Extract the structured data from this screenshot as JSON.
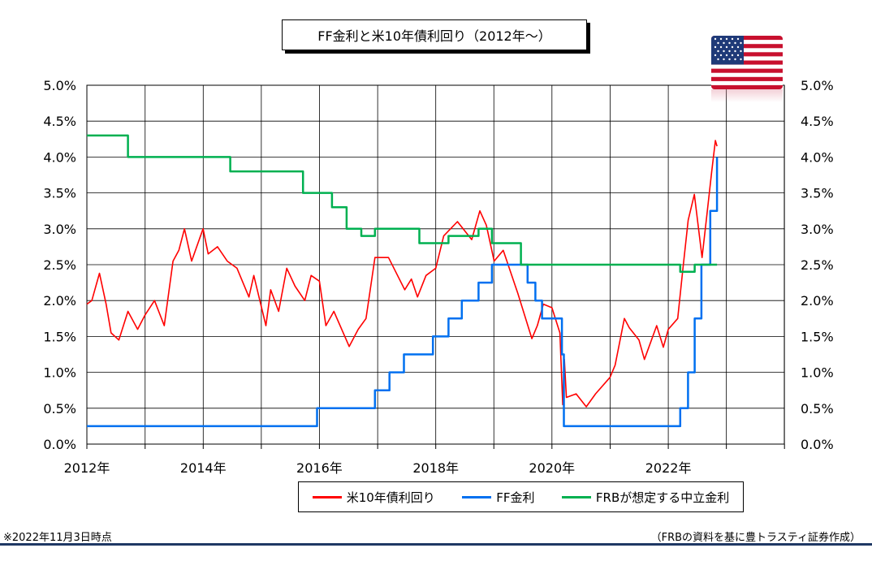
{
  "title": "FF金利と米10年債利回り（2012年～）",
  "footnote_left": "※2022年11月3日時点",
  "footnote_right": "（FRBの資料を基に豊トラスティ証券作成）",
  "colors": {
    "us10y": "#ff0000",
    "ff": "#0070f0",
    "neutral": "#00b050",
    "rule": "#1f3864"
  },
  "flag_icon": "us-flag-icon",
  "chart_data": {
    "type": "line",
    "title": "FF金利と米10年債利回り（2012年～）",
    "x_range": [
      "2012-01-01",
      "2023-12-31"
    ],
    "x_ticks": [
      {
        "x": "2012-01-01",
        "label": "2012年"
      },
      {
        "x": "2014-01-01",
        "label": "2014年"
      },
      {
        "x": "2016-01-01",
        "label": "2016年"
      },
      {
        "x": "2018-01-01",
        "label": "2018年"
      },
      {
        "x": "2020-01-01",
        "label": "2020年"
      },
      {
        "x": "2022-01-01",
        "label": "2022年"
      }
    ],
    "y_range": [
      0,
      5.0
    ],
    "y_ticks": [
      "0.0%",
      "0.5%",
      "1.0%",
      "1.5%",
      "2.0%",
      "2.5%",
      "3.0%",
      "3.5%",
      "4.0%",
      "4.5%",
      "5.0%"
    ],
    "grid": true,
    "legend_position": "bottom",
    "series": [
      {
        "name": "米10年債利回り",
        "color": "#ff0000",
        "step": false,
        "points": [
          [
            "2012-01-01",
            1.95
          ],
          [
            "2012-02-01",
            2.0
          ],
          [
            "2012-03-20",
            2.38
          ],
          [
            "2012-05-01",
            1.95
          ],
          [
            "2012-06-01",
            1.55
          ],
          [
            "2012-07-20",
            1.45
          ],
          [
            "2012-09-15",
            1.85
          ],
          [
            "2012-11-15",
            1.6
          ],
          [
            "2013-01-01",
            1.8
          ],
          [
            "2013-03-01",
            2.0
          ],
          [
            "2013-05-01",
            1.65
          ],
          [
            "2013-06-25",
            2.55
          ],
          [
            "2013-08-01",
            2.7
          ],
          [
            "2013-09-05",
            3.0
          ],
          [
            "2013-10-20",
            2.55
          ],
          [
            "2013-12-31",
            3.0
          ],
          [
            "2014-02-01",
            2.65
          ],
          [
            "2014-04-01",
            2.75
          ],
          [
            "2014-06-01",
            2.55
          ],
          [
            "2014-08-01",
            2.45
          ],
          [
            "2014-10-15",
            2.05
          ],
          [
            "2014-11-15",
            2.35
          ],
          [
            "2015-01-30",
            1.65
          ],
          [
            "2015-03-01",
            2.15
          ],
          [
            "2015-04-20",
            1.85
          ],
          [
            "2015-06-10",
            2.45
          ],
          [
            "2015-08-01",
            2.2
          ],
          [
            "2015-10-01",
            2.0
          ],
          [
            "2015-11-10",
            2.35
          ],
          [
            "2016-01-01",
            2.27
          ],
          [
            "2016-02-11",
            1.65
          ],
          [
            "2016-04-01",
            1.85
          ],
          [
            "2016-07-06",
            1.36
          ],
          [
            "2016-09-01",
            1.6
          ],
          [
            "2016-10-20",
            1.75
          ],
          [
            "2016-12-15",
            2.6
          ],
          [
            "2017-03-10",
            2.6
          ],
          [
            "2017-06-20",
            2.15
          ],
          [
            "2017-08-01",
            2.3
          ],
          [
            "2017-09-08",
            2.05
          ],
          [
            "2017-11-01",
            2.35
          ],
          [
            "2018-01-01",
            2.45
          ],
          [
            "2018-02-20",
            2.9
          ],
          [
            "2018-05-17",
            3.1
          ],
          [
            "2018-08-15",
            2.85
          ],
          [
            "2018-10-05",
            3.25
          ],
          [
            "2018-11-15",
            3.05
          ],
          [
            "2019-01-03",
            2.55
          ],
          [
            "2019-03-01",
            2.7
          ],
          [
            "2019-06-01",
            2.1
          ],
          [
            "2019-08-28",
            1.47
          ],
          [
            "2019-10-01",
            1.65
          ],
          [
            "2019-11-08",
            1.95
          ],
          [
            "2020-01-01",
            1.9
          ],
          [
            "2020-02-20",
            1.55
          ],
          [
            "2020-03-09",
            0.55
          ],
          [
            "2020-03-19",
            1.18
          ],
          [
            "2020-04-01",
            0.65
          ],
          [
            "2020-06-01",
            0.7
          ],
          [
            "2020-08-04",
            0.52
          ],
          [
            "2020-10-01",
            0.7
          ],
          [
            "2020-12-31",
            0.93
          ],
          [
            "2021-02-01",
            1.1
          ],
          [
            "2021-03-31",
            1.75
          ],
          [
            "2021-05-01",
            1.62
          ],
          [
            "2021-07-01",
            1.45
          ],
          [
            "2021-08-04",
            1.18
          ],
          [
            "2021-10-20",
            1.65
          ],
          [
            "2021-12-01",
            1.35
          ],
          [
            "2022-01-01",
            1.6
          ],
          [
            "2022-03-01",
            1.75
          ],
          [
            "2022-04-01",
            2.4
          ],
          [
            "2022-05-06",
            3.12
          ],
          [
            "2022-06-14",
            3.48
          ],
          [
            "2022-08-01",
            2.6
          ],
          [
            "2022-09-01",
            3.2
          ],
          [
            "2022-10-01",
            3.8
          ],
          [
            "2022-10-24",
            4.23
          ],
          [
            "2022-11-03",
            4.15
          ]
        ]
      },
      {
        "name": "FF金利",
        "color": "#0070f0",
        "step": true,
        "points": [
          [
            "2012-01-01",
            0.25
          ],
          [
            "2015-12-17",
            0.5
          ],
          [
            "2016-12-15",
            0.75
          ],
          [
            "2017-03-16",
            1.0
          ],
          [
            "2017-06-15",
            1.25
          ],
          [
            "2017-12-14",
            1.5
          ],
          [
            "2018-03-22",
            1.75
          ],
          [
            "2018-06-14",
            2.0
          ],
          [
            "2018-09-27",
            2.25
          ],
          [
            "2018-12-20",
            2.5
          ],
          [
            "2019-08-01",
            2.25
          ],
          [
            "2019-09-19",
            2.0
          ],
          [
            "2019-10-31",
            1.75
          ],
          [
            "2020-03-04",
            1.25
          ],
          [
            "2020-03-16",
            0.25
          ],
          [
            "2022-03-17",
            0.5
          ],
          [
            "2022-05-05",
            1.0
          ],
          [
            "2022-06-16",
            1.75
          ],
          [
            "2022-07-28",
            2.5
          ],
          [
            "2022-09-22",
            3.25
          ],
          [
            "2022-11-03",
            4.0
          ]
        ]
      },
      {
        "name": "FRBが想定する中立金利",
        "color": "#00b050",
        "step": true,
        "points": [
          [
            "2012-01-01",
            4.3
          ],
          [
            "2012-09-15",
            4.0
          ],
          [
            "2014-06-20",
            3.8
          ],
          [
            "2015-09-20",
            3.5
          ],
          [
            "2016-03-20",
            3.3
          ],
          [
            "2016-06-20",
            3.0
          ],
          [
            "2016-09-20",
            2.9
          ],
          [
            "2016-12-15",
            3.0
          ],
          [
            "2017-09-20",
            2.8
          ],
          [
            "2018-03-22",
            2.9
          ],
          [
            "2018-09-27",
            3.0
          ],
          [
            "2018-12-20",
            2.8
          ],
          [
            "2019-06-20",
            2.5
          ],
          [
            "2022-03-17",
            2.4
          ],
          [
            "2022-06-16",
            2.5
          ],
          [
            "2022-11-03",
            2.5
          ]
        ]
      }
    ]
  }
}
